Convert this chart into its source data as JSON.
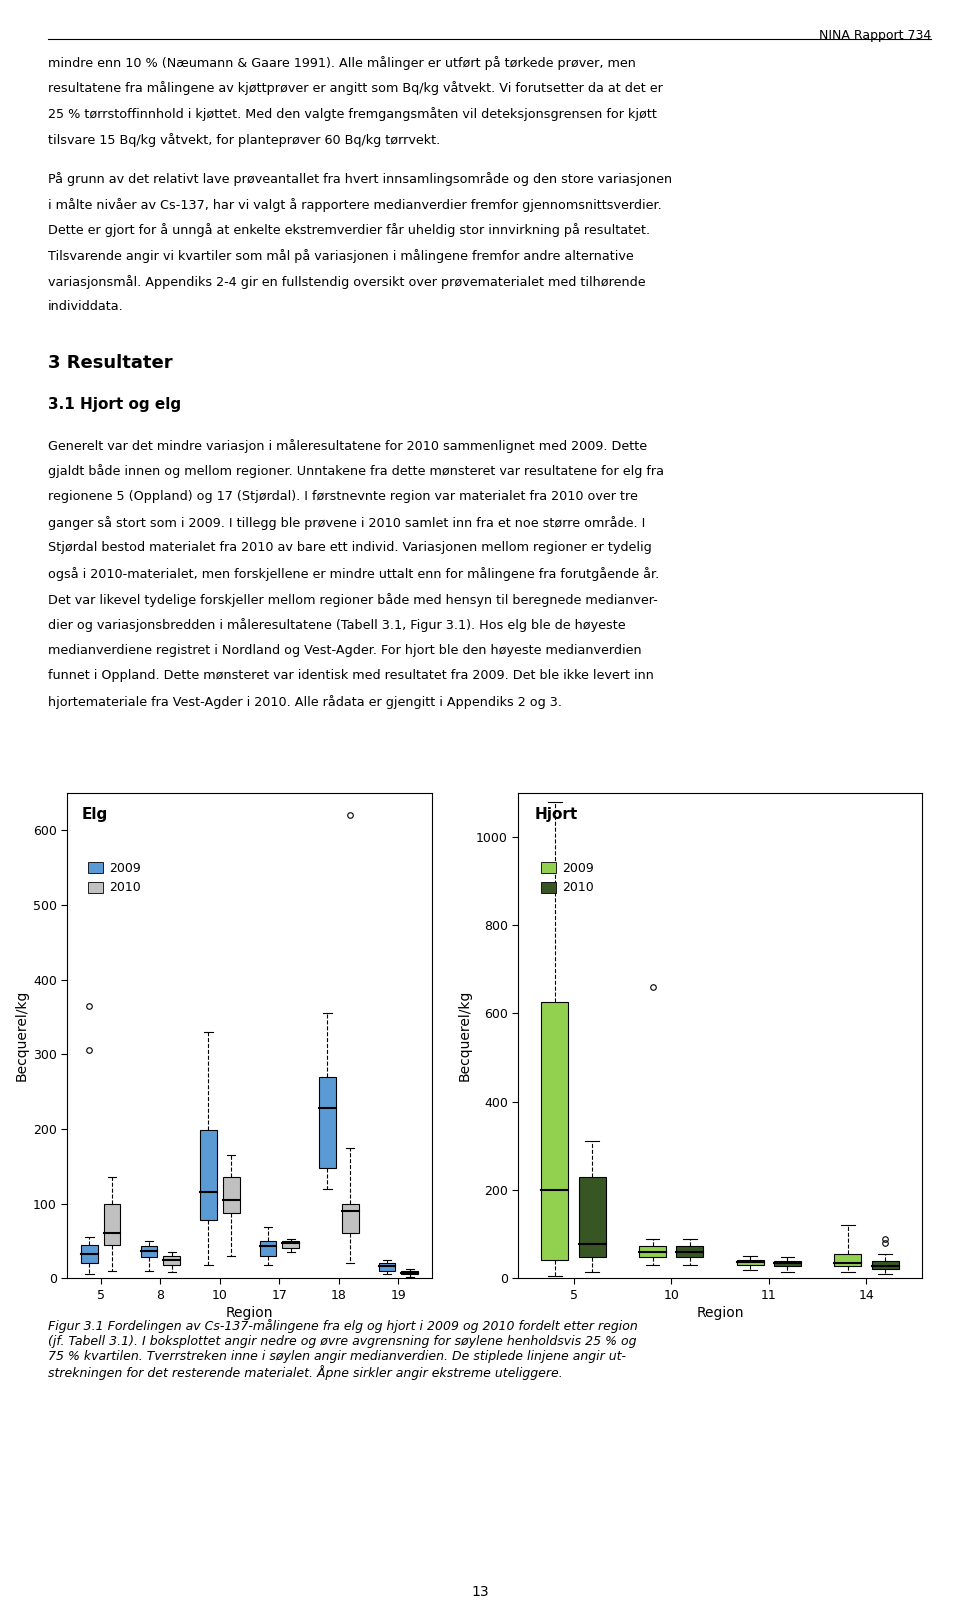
{
  "title_left": "Elg",
  "title_right": "Hjort",
  "ylabel": "Becquerel/kg",
  "xlabel": "Region",
  "background_color": "#ffffff",
  "page_number": "13",
  "report_header": "NINA Rapport 734",
  "elg": {
    "regions": [
      5,
      8,
      10,
      17,
      18,
      19
    ],
    "color_2009": "#5b9bd5",
    "color_2010": "#c0c0c0",
    "ylim": [
      0,
      650
    ],
    "yticks": [
      0,
      100,
      200,
      300,
      400,
      500,
      600
    ],
    "data_2009": {
      "5": {
        "q1": 20,
        "median": 32,
        "q3": 45,
        "whislo": 5,
        "whishi": 55,
        "fliers": [
          365,
          305
        ]
      },
      "8": {
        "q1": 28,
        "median": 37,
        "q3": 43,
        "whislo": 10,
        "whishi": 50,
        "fliers": []
      },
      "10": {
        "q1": 78,
        "median": 115,
        "q3": 198,
        "whislo": 18,
        "whishi": 330,
        "fliers": []
      },
      "17": {
        "q1": 30,
        "median": 43,
        "q3": 50,
        "whislo": 18,
        "whishi": 68,
        "fliers": []
      },
      "18": {
        "q1": 148,
        "median": 228,
        "q3": 270,
        "whislo": 120,
        "whishi": 355,
        "fliers": []
      },
      "19": {
        "q1": 10,
        "median": 16,
        "q3": 20,
        "whislo": 5,
        "whishi": 25,
        "fliers": []
      }
    },
    "data_2010": {
      "5": {
        "q1": 45,
        "median": 60,
        "q3": 100,
        "whislo": 10,
        "whishi": 135,
        "fliers": []
      },
      "8": {
        "q1": 18,
        "median": 25,
        "q3": 30,
        "whislo": 8,
        "whishi": 35,
        "fliers": []
      },
      "10": {
        "q1": 87,
        "median": 105,
        "q3": 135,
        "whislo": 30,
        "whishi": 165,
        "fliers": []
      },
      "17": {
        "q1": 40,
        "median": 47,
        "q3": 50,
        "whislo": 35,
        "whishi": 53,
        "fliers": []
      },
      "18": {
        "q1": 60,
        "median": 90,
        "q3": 100,
        "whislo": 20,
        "whishi": 175,
        "fliers": [
          620
        ]
      },
      "19": {
        "q1": 5,
        "median": 7,
        "q3": 10,
        "whislo": 2,
        "whishi": 12,
        "fliers": []
      }
    }
  },
  "hjort": {
    "regions": [
      5,
      10,
      11,
      14
    ],
    "color_2009": "#92d050",
    "color_2010": "#375623",
    "ylim": [
      0,
      1100
    ],
    "yticks": [
      0,
      200,
      400,
      600,
      800,
      1000
    ],
    "data_2009": {
      "5": {
        "q1": 42,
        "median": 200,
        "q3": 625,
        "whislo": 5,
        "whishi": 1080,
        "fliers": []
      },
      "10": {
        "q1": 48,
        "median": 60,
        "q3": 72,
        "whislo": 30,
        "whishi": 90,
        "fliers": [
          660
        ]
      },
      "11": {
        "q1": 30,
        "median": 37,
        "q3": 42,
        "whislo": 18,
        "whishi": 50,
        "fliers": []
      },
      "14": {
        "q1": 28,
        "median": 35,
        "q3": 55,
        "whislo": 15,
        "whishi": 120,
        "fliers": []
      }
    },
    "data_2010": {
      "5": {
        "q1": 48,
        "median": 78,
        "q3": 230,
        "whislo": 15,
        "whishi": 310,
        "fliers": []
      },
      "10": {
        "q1": 48,
        "median": 60,
        "q3": 72,
        "whislo": 30,
        "whishi": 90,
        "fliers": []
      },
      "11": {
        "q1": 28,
        "median": 35,
        "q3": 40,
        "whislo": 15,
        "whishi": 48,
        "fliers": []
      },
      "14": {
        "q1": 22,
        "median": 28,
        "q3": 38,
        "whislo": 10,
        "whishi": 55,
        "fliers": [
          80,
          90
        ]
      }
    }
  }
}
